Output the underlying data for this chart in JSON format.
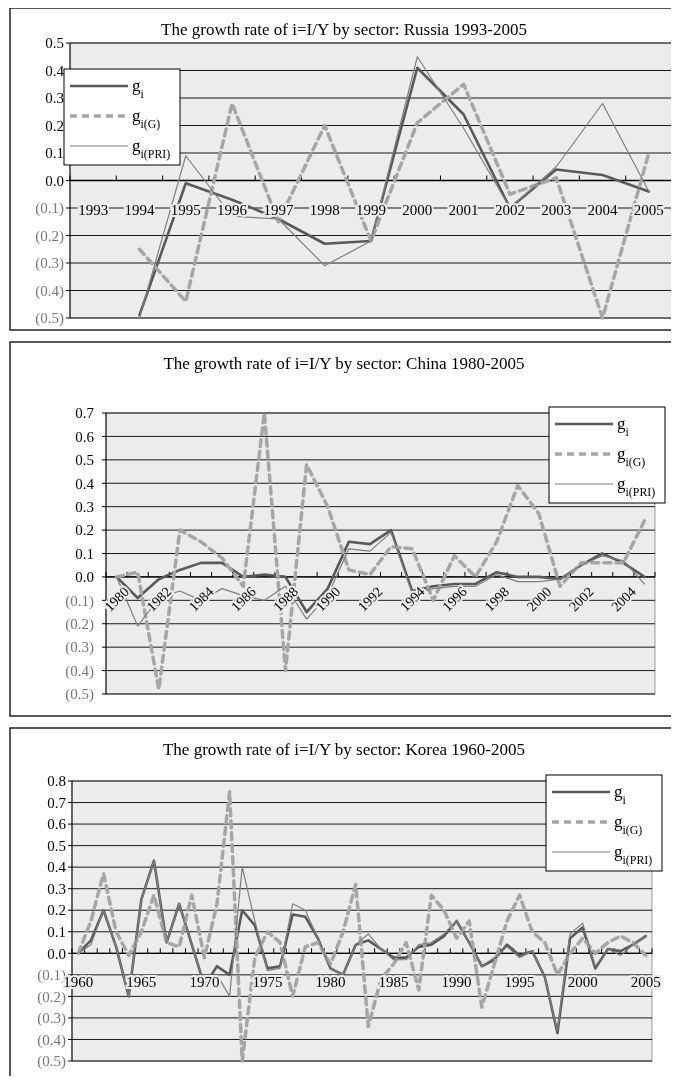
{
  "chart_data": [
    {
      "type": "line",
      "title": "The growth rate of i=I/Y by sector: Russia 1993-2005",
      "categories": [
        "1993",
        "1994",
        "1995",
        "1996",
        "1997",
        "1998",
        "1999",
        "2000",
        "2001",
        "2002",
        "2003",
        "2004",
        "2005"
      ],
      "series": [
        {
          "name": "g$_{i}$",
          "color": "#595959",
          "line_style": "solid",
          "values": [
            null,
            -0.49,
            -0.01,
            -0.07,
            -0.14,
            -0.23,
            -0.22,
            0.41,
            0.24,
            -0.1,
            0.04,
            0.02,
            -0.04
          ]
        },
        {
          "name": "g$_{i(G)}$",
          "color": "#a6a6a6",
          "line_style": "dashed",
          "values": [
            null,
            -0.25,
            -0.44,
            0.28,
            -0.15,
            0.2,
            -0.22,
            0.21,
            0.35,
            -0.05,
            0.01,
            -0.5,
            0.1
          ]
        },
        {
          "name": "g$_{i(PRI)}$",
          "color": "#7f7f7f",
          "line_style": "solid",
          "values": [
            null,
            -0.5,
            0.09,
            -0.13,
            -0.14,
            -0.31,
            -0.22,
            0.45,
            0.19,
            -0.1,
            0.05,
            0.28,
            -0.04
          ]
        }
      ],
      "ylim": [
        -0.5,
        0.5
      ],
      "yticks": [
        0.5,
        0.4,
        0.3,
        0.2,
        0.1,
        {
          "value": 0,
          "label": "0.0"
        },
        {
          "value": -0.1,
          "label": "(0.1)"
        },
        {
          "value": -0.2,
          "label": "(0.2)"
        },
        {
          "value": -0.3,
          "label": "(0.3)"
        },
        {
          "value": -0.4,
          "label": "(0.4)"
        },
        {
          "value": -0.5,
          "label": "(0.5)"
        }
      ],
      "grid": "y",
      "legend": "top left"
    },
    {
      "type": "line",
      "title": "The growth rate of i=I/Y by sector: China 1980-2005",
      "categories": [
        "1980",
        null,
        "1982",
        null,
        "1984",
        null,
        "1986",
        null,
        "1988",
        null,
        "1990",
        null,
        "1992",
        null,
        "1994",
        null,
        "1996",
        null,
        "1998",
        null,
        "2000",
        null,
        "2002",
        null,
        "2004",
        null
      ],
      "series": [
        {
          "name": "g$_{i}$",
          "color": "#595959",
          "line_style": "solid",
          "values": [
            0,
            -0.09,
            -0.01,
            0.03,
            0.06,
            0.06,
            0,
            0.01,
            0,
            -0.15,
            -0.05,
            0.15,
            0.14,
            0.2,
            -0.06,
            -0.04,
            -0.03,
            -0.03,
            0.02,
            0,
            0,
            -0.01,
            0.05,
            0.1,
            0.06,
            0
          ]
        },
        {
          "name": "g$_{i(G)}$",
          "color": "#a6a6a6",
          "line_style": "dashed",
          "values": [
            0,
            0.02,
            -0.48,
            0.2,
            0.15,
            0.08,
            -0.04,
            0.7,
            -0.4,
            0.48,
            0.3,
            0.03,
            0.01,
            0.13,
            0.12,
            -0.1,
            0.09,
            0.0,
            0.15,
            0.39,
            0.27,
            -0.04,
            0.06,
            0.06,
            0.06,
            0.24
          ]
        },
        {
          "name": "g$_{i(PRI)}$",
          "color": "#7f7f7f",
          "line_style": "solid",
          "values": [
            0,
            -0.21,
            -0.09,
            -0.06,
            -0.1,
            -0.05,
            -0.08,
            -0.1,
            -0.04,
            -0.18,
            -0.08,
            0.12,
            0.11,
            0.19,
            -0.07,
            -0.05,
            -0.04,
            -0.04,
            0.01,
            -0.02,
            -0.02,
            -0.01,
            0.05,
            0.09,
            0.07,
            -0.03
          ]
        }
      ],
      "ylim": [
        -0.5,
        0.7
      ],
      "yticks": [
        0.7,
        0.6,
        0.5,
        0.4,
        0.3,
        0.2,
        0.1,
        {
          "value": 0,
          "label": "0.0"
        },
        {
          "value": -0.1,
          "label": "(0.1)"
        },
        {
          "value": -0.2,
          "label": "(0.2)"
        },
        {
          "value": -0.3,
          "label": "(0.3)"
        },
        {
          "value": -0.4,
          "label": "(0.4)"
        },
        {
          "value": -0.5,
          "label": "(0.5)"
        }
      ],
      "grid": "y",
      "legend": "top right"
    },
    {
      "type": "line",
      "title": "The growth rate of i=I/Y by sector: Korea 1960-2005",
      "categories": [
        "1960",
        null,
        null,
        null,
        null,
        "1965",
        null,
        null,
        null,
        null,
        "1970",
        null,
        null,
        null,
        null,
        "1975",
        null,
        null,
        null,
        null,
        "1980",
        null,
        null,
        null,
        null,
        "1985",
        null,
        null,
        null,
        null,
        "1990",
        null,
        null,
        null,
        null,
        "1995",
        null,
        null,
        null,
        null,
        "2000",
        null,
        null,
        null,
        null,
        "2005"
      ],
      "series": [
        {
          "name": "g$_{i}$",
          "color": "#595959",
          "line_style": "solid",
          "values": [
            0,
            0.06,
            0.2,
            0.03,
            -0.2,
            0.25,
            0.43,
            0.05,
            0.23,
            0.04,
            -0.15,
            -0.06,
            -0.1,
            0.2,
            0.13,
            -0.07,
            -0.06,
            0.18,
            0.17,
            0.07,
            -0.07,
            -0.1,
            0.04,
            0.06,
            0.02,
            -0.02,
            -0.02,
            0.03,
            0.04,
            0.08,
            0.15,
            0.05,
            -0.06,
            -0.03,
            0.04,
            -0.01,
            0.01,
            -0.11,
            -0.37,
            0.07,
            0.12,
            -0.07,
            0.02,
            0.01,
            0.04,
            0.08
          ]
        },
        {
          "name": "g$_{i(G)}$",
          "color": "#a6a6a6",
          "line_style": "dashed",
          "values": [
            0,
            0.15,
            0.37,
            0.1,
            -0.01,
            0.1,
            0.27,
            0.05,
            0.03,
            0.27,
            -0.02,
            0.23,
            0.75,
            -0.5,
            -0.02,
            0.1,
            0.05,
            -0.2,
            0.03,
            0.05,
            -0.05,
            0.1,
            0.32,
            -0.34,
            -0.12,
            -0.05,
            0.05,
            -0.17,
            0.27,
            0.2,
            0.07,
            0.15,
            -0.25,
            -0.05,
            0.15,
            0.27,
            0.1,
            0.05,
            -0.1,
            0.0,
            0.07,
            0.0,
            0.05,
            0.08,
            0.05,
            -0.01
          ]
        },
        {
          "name": "g$_{i(PRI)}$",
          "color": "#7f7f7f",
          "line_style": "solid",
          "values": [
            0,
            0.04,
            0.2,
            0.03,
            -0.2,
            0.25,
            0.43,
            0.05,
            0.23,
            0.04,
            -0.15,
            -0.1,
            -0.2,
            0.4,
            0.15,
            -0.08,
            -0.07,
            0.23,
            0.2,
            0.07,
            -0.07,
            -0.1,
            0.04,
            0.09,
            0.02,
            -0.03,
            -0.03,
            0.04,
            0.05,
            0.09,
            0.15,
            0.05,
            -0.06,
            -0.02,
            0.03,
            -0.02,
            0.01,
            -0.11,
            -0.36,
            0.09,
            0.14,
            -0.06,
            0.02,
            -0.01,
            0.04,
            0.08
          ]
        }
      ],
      "ylim": [
        -0.5,
        0.8
      ],
      "yticks": [
        0.8,
        0.7,
        0.6,
        0.5,
        0.4,
        0.3,
        0.2,
        0.1,
        {
          "value": 0,
          "label": "0.0"
        },
        {
          "value": -0.1,
          "label": "(0.1)"
        },
        {
          "value": -0.2,
          "label": "(0.2)"
        },
        {
          "value": -0.3,
          "label": "(0.3)"
        },
        {
          "value": -0.4,
          "label": "(0.4)"
        },
        {
          "value": -0.5,
          "label": "(0.5)"
        }
      ],
      "grid": "y",
      "legend": "top right"
    }
  ]
}
